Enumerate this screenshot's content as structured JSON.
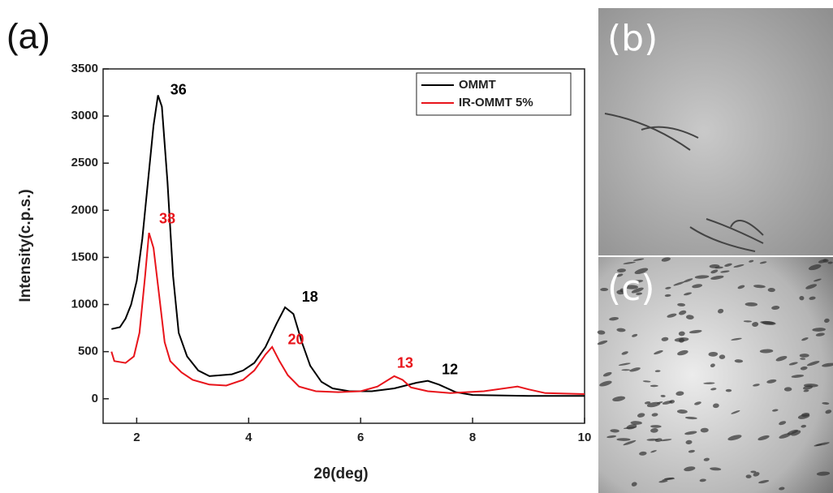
{
  "chart_data": {
    "type": "line",
    "panel_label": "(a)",
    "x_label": "2θ(deg)",
    "y_label": "Intensity(c.p.s.)",
    "xlim": [
      1.4,
      10
    ],
    "ylim": [
      -260,
      3500
    ],
    "xticks": [
      2,
      4,
      6,
      8,
      10
    ],
    "yticks": [
      0,
      500,
      1000,
      1500,
      2000,
      2500,
      3000,
      3500
    ],
    "legend": "upper right",
    "series": [
      {
        "name": "OMMT",
        "color": "#000000",
        "x": [
          1.55,
          1.7,
          1.8,
          1.9,
          2.0,
          2.1,
          2.2,
          2.3,
          2.38,
          2.45,
          2.55,
          2.65,
          2.75,
          2.9,
          3.1,
          3.3,
          3.5,
          3.7,
          3.9,
          4.1,
          4.3,
          4.5,
          4.65,
          4.8,
          4.95,
          5.1,
          5.3,
          5.5,
          5.8,
          6.2,
          6.6,
          7.0,
          7.2,
          7.4,
          7.7,
          8.0,
          9.0,
          10
        ],
        "values": [
          740,
          760,
          850,
          1000,
          1250,
          1700,
          2300,
          2900,
          3220,
          3100,
          2300,
          1300,
          700,
          450,
          300,
          240,
          250,
          260,
          300,
          380,
          550,
          800,
          970,
          900,
          600,
          350,
          180,
          110,
          80,
          80,
          110,
          170,
          190,
          150,
          70,
          40,
          30,
          30
        ]
      },
      {
        "name": "IR-OMMT 5%",
        "color": "#e8141b",
        "x": [
          1.55,
          1.6,
          1.8,
          1.95,
          2.05,
          2.15,
          2.22,
          2.3,
          2.4,
          2.5,
          2.6,
          2.8,
          3.0,
          3.3,
          3.6,
          3.9,
          4.1,
          4.3,
          4.42,
          4.55,
          4.7,
          4.9,
          5.2,
          5.6,
          6.0,
          6.3,
          6.6,
          6.75,
          6.9,
          7.2,
          7.6,
          8.2,
          8.8,
          9.0,
          9.3,
          10
        ],
        "values": [
          500,
          400,
          380,
          450,
          700,
          1300,
          1760,
          1600,
          1100,
          600,
          400,
          280,
          200,
          150,
          140,
          200,
          300,
          470,
          550,
          400,
          250,
          130,
          80,
          70,
          80,
          130,
          240,
          200,
          120,
          80,
          60,
          80,
          130,
          100,
          60,
          50
        ]
      }
    ],
    "annotations": [
      {
        "text": "36",
        "x": 2.6,
        "y": 3270,
        "color": "#000000"
      },
      {
        "text": "38",
        "x": 2.4,
        "y": 1900,
        "color": "#e8141b"
      },
      {
        "text": "18",
        "x": 4.95,
        "y": 1070,
        "color": "#000000"
      },
      {
        "text": "20",
        "x": 4.7,
        "y": 620,
        "color": "#e8141b"
      },
      {
        "text": "13",
        "x": 6.65,
        "y": 370,
        "color": "#e8141b"
      },
      {
        "text": "12",
        "x": 7.45,
        "y": 300,
        "color": "#000000"
      }
    ]
  },
  "images": [
    {
      "label": "(b)"
    },
    {
      "label": "(c)"
    }
  ]
}
